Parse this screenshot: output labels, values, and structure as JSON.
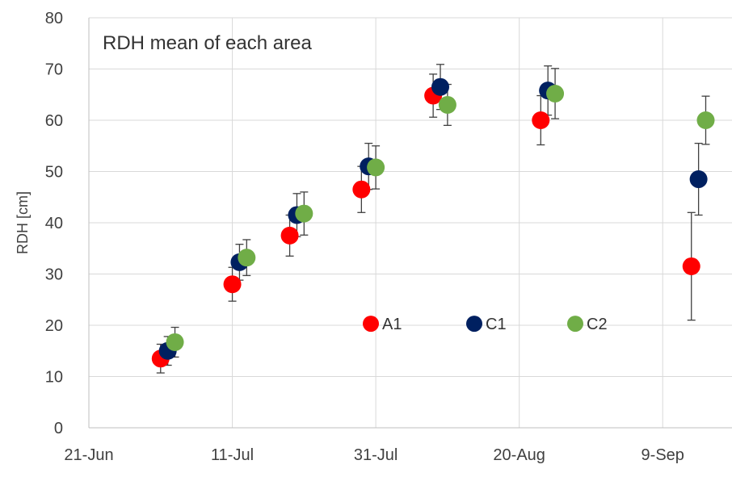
{
  "chart_data": {
    "type": "scatter",
    "title": "RDH   mean of each area",
    "xlabel": "",
    "ylabel": "RDH [cm]",
    "ylim": [
      0,
      80
    ],
    "yticks": [
      "0",
      "10",
      "20",
      "30",
      "40",
      "50",
      "60",
      "70",
      "80"
    ],
    "x_axis_type": "date",
    "xlim": [
      "2013-06-21",
      "2013-09-19"
    ],
    "xticks": [
      {
        "date": "2013-06-21",
        "label": "21-Jun"
      },
      {
        "date": "2013-07-11",
        "label": "11-Jul"
      },
      {
        "date": "2013-07-31",
        "label": "31-Jul"
      },
      {
        "date": "2013-08-20",
        "label": "20-Aug"
      },
      {
        "date": "2013-09-09",
        "label": "9-Sep"
      }
    ],
    "grid": true,
    "legend_position": "inside-center",
    "series": [
      {
        "name": "A1",
        "color": "#FF0000",
        "points": [
          {
            "x": "2013-07-01",
            "y": 13.5,
            "err": 2.8
          },
          {
            "x": "2013-07-11",
            "y": 28.0,
            "err": 3.3
          },
          {
            "x": "2013-07-19",
            "y": 37.5,
            "err": 4.0
          },
          {
            "x": "2013-07-29",
            "y": 46.5,
            "err": 4.5
          },
          {
            "x": "2013-08-08",
            "y": 64.8,
            "err": 4.2
          },
          {
            "x": "2013-08-23",
            "y": 60.0,
            "err": 4.8
          },
          {
            "x": "2013-09-13",
            "y": 31.5,
            "err": 10.5
          }
        ]
      },
      {
        "name": "C1",
        "color": "#002060",
        "points": [
          {
            "x": "2013-07-02",
            "y": 15.0,
            "err": 2.8
          },
          {
            "x": "2013-07-12",
            "y": 32.3,
            "err": 3.5
          },
          {
            "x": "2013-07-20",
            "y": 41.5,
            "err": 4.2
          },
          {
            "x": "2013-07-30",
            "y": 51.0,
            "err": 4.5
          },
          {
            "x": "2013-08-09",
            "y": 66.5,
            "err": 4.4
          },
          {
            "x": "2013-08-24",
            "y": 65.8,
            "err": 4.8
          },
          {
            "x": "2013-09-14",
            "y": 48.5,
            "err": 7.0
          }
        ]
      },
      {
        "name": "C2",
        "color": "#70AD47",
        "points": [
          {
            "x": "2013-07-03",
            "y": 16.7,
            "err": 2.9
          },
          {
            "x": "2013-07-13",
            "y": 33.2,
            "err": 3.5
          },
          {
            "x": "2013-07-21",
            "y": 41.8,
            "err": 4.2
          },
          {
            "x": "2013-07-31",
            "y": 50.8,
            "err": 4.2
          },
          {
            "x": "2013-08-10",
            "y": 63.0,
            "err": 4.0
          },
          {
            "x": "2013-08-25",
            "y": 65.2,
            "err": 4.9
          },
          {
            "x": "2013-09-15",
            "y": 60.0,
            "err": 4.7
          }
        ]
      }
    ],
    "colors": {
      "grid": "#D9D9D9",
      "axis": "#BFBFBF",
      "errorbar": "#404040",
      "text": "#404040"
    }
  }
}
